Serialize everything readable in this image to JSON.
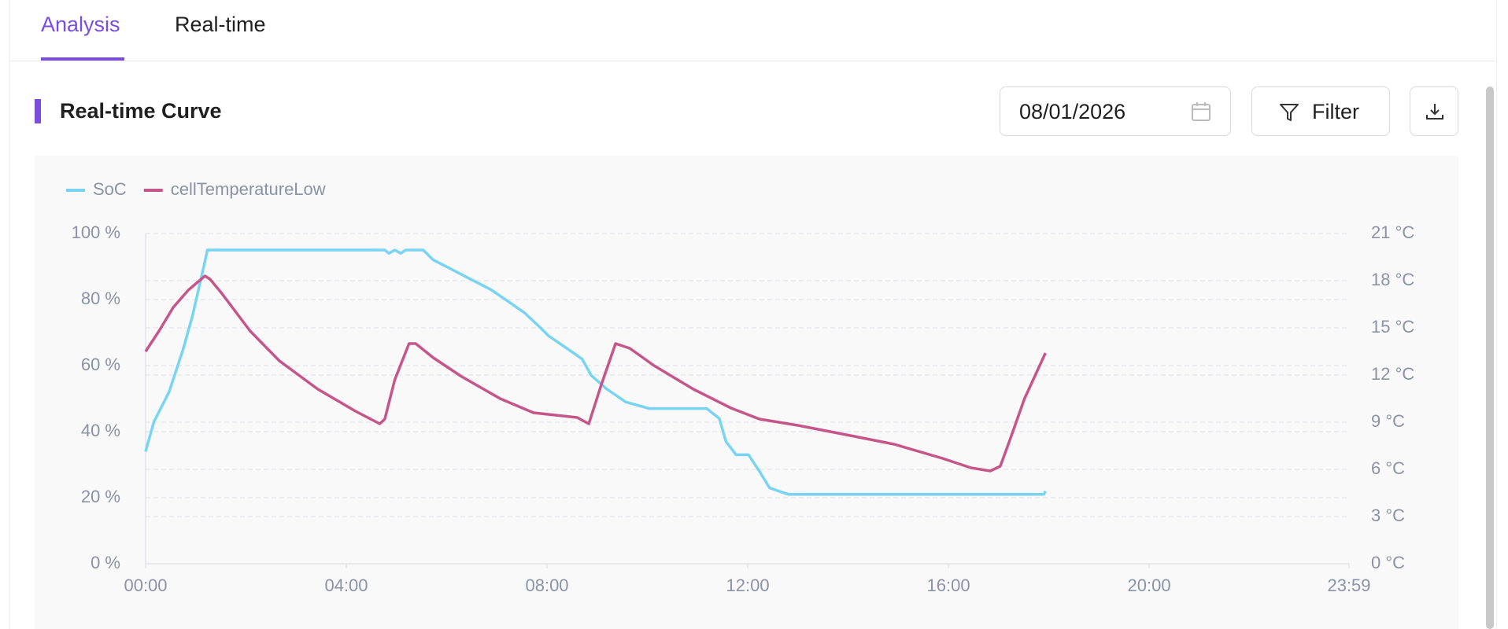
{
  "tabs": [
    "Analysis",
    "Real-time"
  ],
  "section_title": "Real-time Curve",
  "date": "08/01/2026",
  "filter_button": "Filter",
  "chart_data": {
    "type": "line",
    "legend": "top-left",
    "grid": true,
    "xlim": [
      0,
      1439
    ],
    "xticks": [
      {
        "value": 0,
        "label": "00:00"
      },
      {
        "value": 240,
        "label": "04:00"
      },
      {
        "value": 480,
        "label": "08:00"
      },
      {
        "value": 720,
        "label": "12:00"
      },
      {
        "value": 960,
        "label": "16:00"
      },
      {
        "value": 1200,
        "label": "20:00"
      },
      {
        "value": 1439,
        "label": "23:59"
      }
    ],
    "ylim": [
      0,
      100
    ],
    "yticks": [
      {
        "value": 0,
        "label": "0 %"
      },
      {
        "value": 20,
        "label": "20 %"
      },
      {
        "value": 40,
        "label": "40 %"
      },
      {
        "value": 60,
        "label": "60 %"
      },
      {
        "value": 80,
        "label": "80 %"
      },
      {
        "value": 100,
        "label": "100 %"
      }
    ],
    "y2lim": [
      0,
      21
    ],
    "y2ticks": [
      {
        "value": 0,
        "label": "0 °C"
      },
      {
        "value": 3,
        "label": "3 °C"
      },
      {
        "value": 6,
        "label": "6 °C"
      },
      {
        "value": 9,
        "label": "9 °C"
      },
      {
        "value": 12,
        "label": "12 °C"
      },
      {
        "value": 15,
        "label": "15 °C"
      },
      {
        "value": 18,
        "label": "18 °C"
      },
      {
        "value": 21,
        "label": "21 °C"
      }
    ],
    "series": [
      {
        "name": "SoC",
        "color": "#79d4f2",
        "x": [
          0,
          10,
          28,
          45,
          56,
          66,
          74,
          286,
          291,
          298,
          305,
          311,
          332,
          344,
          367,
          390,
          413,
          436,
          453,
          470,
          482,
          505,
          522,
          533,
          551,
          574,
          602,
          671,
          686,
          694,
          706,
          721,
          734,
          746,
          757,
          769,
          1074,
          1076
        ],
        "values": [
          34,
          43,
          52,
          65,
          75,
          86,
          95,
          95,
          94,
          95,
          94,
          95,
          95,
          92,
          89,
          86,
          83,
          79,
          76,
          72,
          69,
          65,
          62,
          57,
          53,
          49,
          47,
          47,
          44,
          37,
          33,
          33,
          28,
          23,
          22,
          21,
          21,
          22
        ]
      },
      {
        "name": "cellTemperatureLow",
        "color": "#c5568a",
        "axis": "y2",
        "x": [
          0,
          16,
          33,
          51,
          71,
          77,
          91,
          125,
          160,
          206,
          251,
          280,
          286,
          298,
          315,
          323,
          344,
          378,
          424,
          464,
          516,
          530,
          545,
          562,
          579,
          608,
          655,
          700,
          734,
          780,
          838,
          895,
          953,
          987,
          1010,
          1022,
          1033,
          1051,
          1076
        ],
        "values": [
          13.5,
          14.8,
          16.3,
          17.4,
          18.3,
          18.1,
          17.2,
          14.8,
          12.9,
          11.1,
          9.7,
          8.9,
          9.2,
          11.7,
          14.0,
          14.0,
          13.1,
          11.9,
          10.5,
          9.6,
          9.3,
          8.9,
          11.4,
          14.0,
          13.7,
          12.6,
          11.1,
          9.9,
          9.2,
          8.8,
          8.2,
          7.6,
          6.7,
          6.1,
          5.9,
          6.2,
          7.8,
          10.5,
          13.4
        ]
      }
    ]
  }
}
